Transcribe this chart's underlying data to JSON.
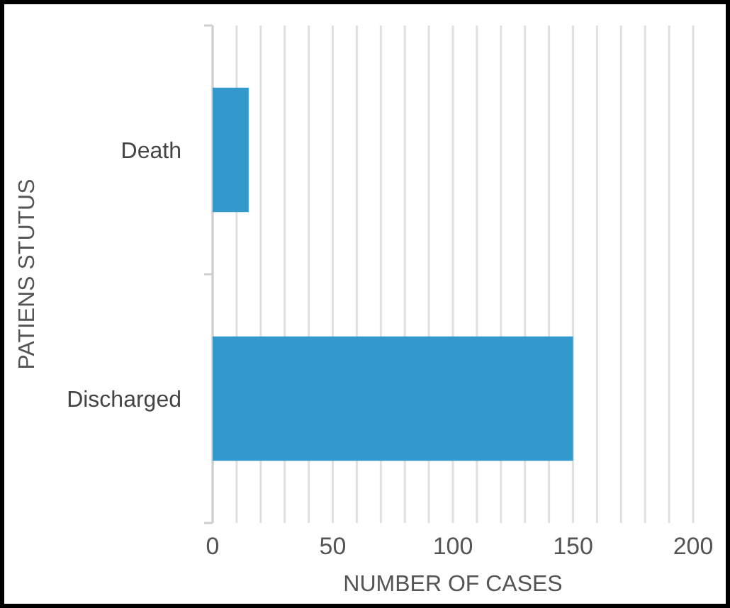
{
  "chart_data": {
    "type": "bar",
    "orientation": "horizontal",
    "categories": [
      "Death",
      "Discharged"
    ],
    "values": [
      15,
      150
    ],
    "color": "#3399cc",
    "xlabel": "NUMBER OF CASES",
    "ylabel": "PATIENS STUTUS",
    "xlim": [
      0,
      200
    ],
    "xticks": [
      0,
      {
        "value": 10,
        "label": null
      },
      {
        "value": 20,
        "label": null
      },
      {
        "value": 30,
        "label": null
      },
      {
        "value": 40,
        "label": null
      },
      50,
      {
        "value": 60,
        "label": null
      },
      {
        "value": 70,
        "label": null
      },
      {
        "value": 80,
        "label": null
      },
      {
        "value": 90,
        "label": null
      },
      100,
      {
        "value": 110,
        "label": null
      },
      {
        "value": 120,
        "label": null
      },
      {
        "value": 130,
        "label": null
      },
      {
        "value": 140,
        "label": null
      },
      150,
      {
        "value": 160,
        "label": null
      },
      {
        "value": 170,
        "label": null
      },
      {
        "value": 180,
        "label": null
      },
      {
        "value": 190,
        "label": null
      },
      200
    ],
    "grid": "x"
  }
}
